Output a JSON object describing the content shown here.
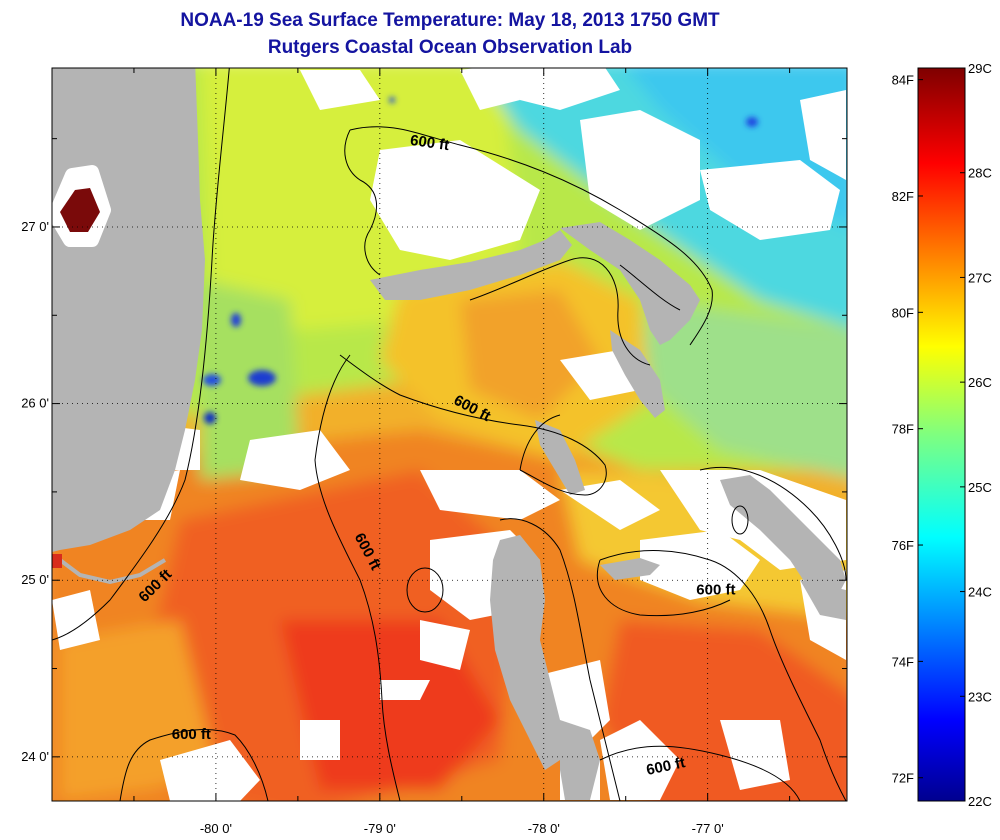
{
  "title": {
    "line1": "NOAA-19 Sea Surface Temperature:  May 18, 2013 1750 GMT",
    "line2": "Rutgers Coastal Ocean Observation Lab"
  },
  "map": {
    "lon_range": [
      -81.0,
      -76.15
    ],
    "lat_range": [
      23.75,
      27.9
    ],
    "lon_ticks": [
      {
        "value": -80,
        "label": "-80 0'"
      },
      {
        "value": -79,
        "label": "-79 0'"
      },
      {
        "value": -78,
        "label": "-78 0'"
      },
      {
        "value": -77,
        "label": "-77 0'"
      }
    ],
    "lat_ticks": [
      {
        "value": 27,
        "label": "27 0'"
      },
      {
        "value": 26,
        "label": "26 0'"
      },
      {
        "value": 25,
        "label": "25 0'"
      },
      {
        "value": 24,
        "label": "24 0'"
      }
    ],
    "minor_lon_ticks": [
      -80.5,
      -79.5,
      -78.5,
      -77.5,
      -76.5
    ],
    "minor_lat_ticks": [
      27.5,
      26.5,
      25.5,
      24.5
    ],
    "grid": "dotted",
    "land_color": "#b4b4b4",
    "cloud_color": "#ffffff",
    "contour": {
      "depth_label": "600 ft",
      "labels": [
        {
          "lon": -78.7,
          "lat": 27.45,
          "rotate": 8
        },
        {
          "lon": -78.45,
          "lat": 25.95,
          "rotate": 28
        },
        {
          "lon": -79.1,
          "lat": 25.15,
          "rotate": 62
        },
        {
          "lon": -80.35,
          "lat": 24.95,
          "rotate": -45
        },
        {
          "lon": -80.15,
          "lat": 24.1,
          "rotate": 0
        },
        {
          "lon": -76.95,
          "lat": 24.92,
          "rotate": 0
        },
        {
          "lon": -77.25,
          "lat": 23.92,
          "rotate": -12
        }
      ]
    }
  },
  "colorbar": {
    "min_c": 22,
    "max_c": 29,
    "celsius_ticks": [
      {
        "value": 29,
        "label": "29C"
      },
      {
        "value": 28,
        "label": "28C"
      },
      {
        "value": 27,
        "label": "27C"
      },
      {
        "value": 26,
        "label": "26C"
      },
      {
        "value": 25,
        "label": "25C"
      },
      {
        "value": 24,
        "label": "24C"
      },
      {
        "value": 23,
        "label": "23C"
      },
      {
        "value": 22,
        "label": "22C"
      }
    ],
    "fahrenheit_ticks": [
      {
        "value": 84,
        "label": "84F"
      },
      {
        "value": 82,
        "label": "82F"
      },
      {
        "value": 80,
        "label": "80F"
      },
      {
        "value": 78,
        "label": "78F"
      },
      {
        "value": 76,
        "label": "76F"
      },
      {
        "value": 74,
        "label": "74F"
      },
      {
        "value": 72,
        "label": "72F"
      }
    ]
  }
}
